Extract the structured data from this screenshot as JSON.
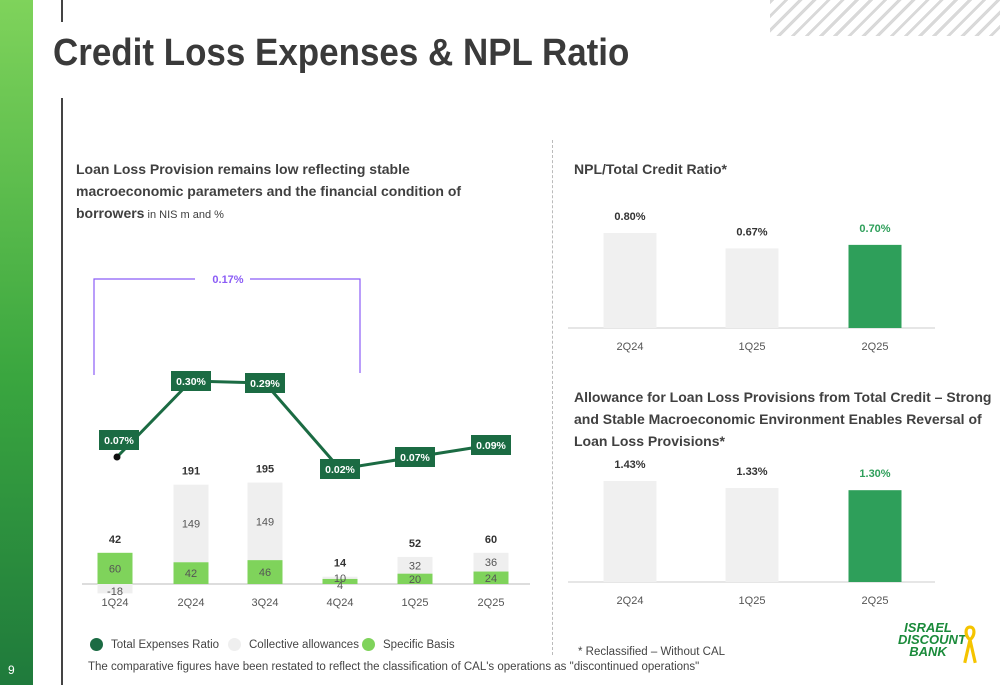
{
  "page_number": "9",
  "title": "Credit Loss Expenses & NPL Ratio",
  "left_subtitle": {
    "bold": "Loan Loss Provision remains low reflecting stable macroeconomic parameters and the financial condition of borrowers",
    "small": " in NIS m and %"
  },
  "npl_title": "NPL/Total Credit Ratio*",
  "allowance_title": "Allowance for Loan Loss Provisions from Total Credit – Strong and Stable Macroeconomic Environment Enables Reversal of Loan Loss Provisions*",
  "legend": {
    "ratio": "Total Expenses Ratio",
    "collective": "Collective allowances",
    "specific": "Specific Basis"
  },
  "footnote_reclass": "* Reclassified – Without CAL",
  "footnote_comparative": "The comparative figures have been restated to reflect the classification of CAL's operations as \"discontinued operations\"",
  "logo_text": [
    "ISRAEL",
    "DISCOUNT",
    "BANK"
  ],
  "colors": {
    "dark_green": "#1b6b43",
    "light_green": "#7fd35b",
    "collective": "#efefef",
    "npl_grey": "#f0f0f0",
    "npl_green": "#2e9f5a",
    "bracket": "#8b5cf6"
  },
  "chart_data": [
    {
      "type": "bar",
      "stacked": true,
      "categories": [
        "1Q24",
        "2Q24",
        "3Q24",
        "4Q24",
        "1Q25",
        "2Q25"
      ],
      "series": [
        {
          "name": "Specific Basis",
          "values": [
            60,
            42,
            46,
            10,
            20,
            24
          ]
        },
        {
          "name": "Collective allowances",
          "values": [
            -18,
            149,
            149,
            4,
            32,
            36
          ]
        }
      ],
      "totals": [
        42,
        191,
        195,
        14,
        52,
        60
      ],
      "line_series": {
        "name": "Total Expenses Ratio",
        "labels": [
          "0.07%",
          "0.30%",
          "0.29%",
          "0.02%",
          "0.07%",
          "0.09%"
        ],
        "values": [
          0.07,
          0.3,
          0.29,
          0.02,
          0.07,
          0.09
        ]
      },
      "annotation": "0.17%"
    },
    {
      "type": "bar",
      "title": "NPL/Total Credit Ratio*",
      "categories": [
        "2Q24",
        "1Q25",
        "2Q25"
      ],
      "values": [
        0.8,
        0.67,
        0.7
      ],
      "labels": [
        "0.80%",
        "0.67%",
        "0.70%"
      ]
    },
    {
      "type": "bar",
      "title": "Allowance for Loan Loss Provisions from Total Credit",
      "categories": [
        "2Q24",
        "1Q25",
        "2Q25"
      ],
      "values": [
        1.43,
        1.33,
        1.3
      ],
      "labels": [
        "1.43%",
        "1.33%",
        "1.30%"
      ]
    }
  ]
}
